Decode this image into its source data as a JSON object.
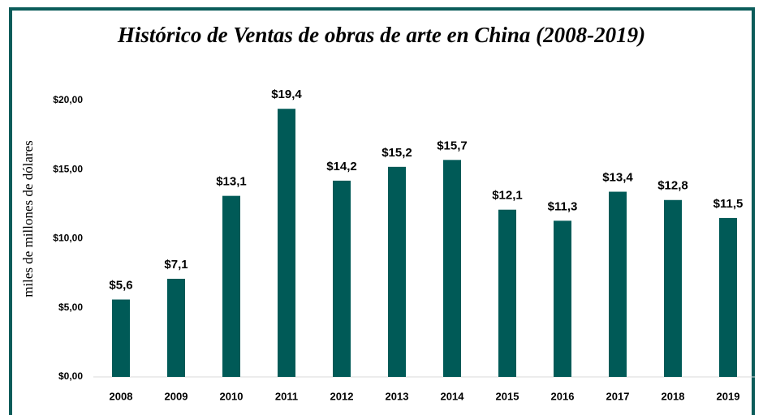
{
  "chart_data": {
    "type": "bar",
    "title": "Histórico de Ventas de obras de arte en China (2008-2019)",
    "y_label": "miles de millones de dólares",
    "categories": [
      "2008",
      "2009",
      "2010",
      "2011",
      "2012",
      "2013",
      "2014",
      "2015",
      "2016",
      "2017",
      "2018",
      "2019"
    ],
    "values": [
      5.6,
      7.1,
      13.1,
      19.4,
      14.2,
      15.2,
      15.7,
      12.1,
      11.3,
      13.4,
      12.8,
      11.5
    ],
    "value_labels": [
      "$5,6",
      "$7,1",
      "$13,1",
      "$19,4",
      "$14,2",
      "$15,2",
      "$15,7",
      "$12,1",
      "$11,3",
      "$13,4",
      "$12,8",
      "$11,5"
    ],
    "color": "#005a57",
    "ylim": [
      0,
      20
    ],
    "yticks": [
      {
        "value": 0,
        "label": "$0,00"
      },
      {
        "value": 5,
        "label": "$5,00"
      },
      {
        "value": 10,
        "label": "$10,00"
      },
      {
        "value": 15,
        "label": "$15,00"
      },
      {
        "value": 20,
        "label": "$20,00"
      }
    ],
    "grid": false
  }
}
